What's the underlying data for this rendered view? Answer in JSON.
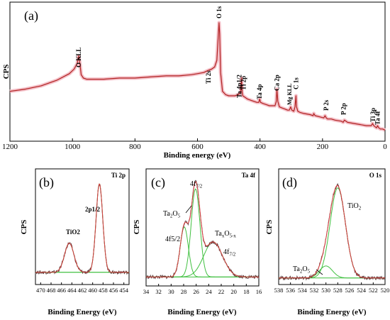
{
  "colors": {
    "raw": "#5a3a3a",
    "envelope": "#d84040",
    "component": "#40c040",
    "background": "#40c040",
    "survey_line": "#b02020",
    "survey_band": "#f4c0c8"
  },
  "chart_data": [
    {
      "id": "a",
      "type": "line",
      "panel_label": "(a)",
      "title": "",
      "xlabel": "Binding energy (eV)",
      "ylabel": "CPS",
      "x_reversed": true,
      "xlim": [
        1200,
        0
      ],
      "x_ticks": [
        "1200",
        "1000",
        "800",
        "600",
        "400",
        "200",
        "0"
      ],
      "y_ticks_shown": false,
      "series": [
        {
          "x": [
            1200,
            1150,
            1100,
            1050,
            1010,
            995,
            985,
            980,
            976,
            972,
            965,
            955,
            940,
            900,
            850,
            800,
            750,
            700,
            660,
            620,
            600,
            580,
            565,
            555,
            545,
            538,
            533,
            531,
            529,
            526,
            520,
            510,
            500,
            490,
            480,
            470,
            462,
            459,
            457,
            455,
            450,
            440,
            430,
            420,
            410,
            404,
            401,
            398,
            390,
            380,
            370,
            360,
            352,
            348,
            346,
            343,
            338,
            330,
            320,
            312,
            306,
            302,
            298,
            292,
            288,
            285,
            283,
            279,
            272,
            260,
            240,
            230,
            228,
            224,
            210,
            196,
            192,
            188,
            184,
            172,
            160,
            140,
            134,
            130,
            120,
            100,
            80,
            60,
            44,
            40,
            36,
            32,
            27,
            24,
            20,
            15,
            8,
            0
          ],
          "y": [
            38,
            40,
            43,
            48,
            54,
            58,
            63,
            70,
            63,
            53,
            50,
            49,
            49,
            49,
            50,
            50,
            51,
            52,
            52,
            53,
            54,
            55,
            57,
            58,
            60,
            66,
            90,
            100,
            90,
            55,
            38,
            35,
            34,
            34,
            34,
            35,
            37,
            50,
            37,
            34,
            33,
            31,
            30,
            29,
            28,
            28,
            31,
            28,
            27,
            26,
            25,
            25,
            25,
            29,
            40,
            29,
            24,
            23,
            22,
            21,
            21,
            24,
            21,
            20,
            24,
            34,
            24,
            20,
            19,
            18,
            17,
            16,
            18,
            16,
            15,
            14,
            16,
            14,
            13,
            13,
            12,
            11,
            10,
            12,
            10,
            9,
            8,
            7,
            7,
            9,
            7,
            6,
            5,
            7,
            5,
            4,
            4,
            3
          ]
        }
      ],
      "annotations": [
        {
          "text": "O KLL",
          "x": 980
        },
        {
          "text": "Ti 2s",
          "x": 565
        },
        {
          "text": "O 1s",
          "x": 531
        },
        {
          "text": "Ta 4p1/2",
          "x": 466
        },
        {
          "text": "Ti 2p",
          "x": 453
        },
        {
          "text": "Ta 4p",
          "x": 401
        },
        {
          "text": "Ca 2p",
          "x": 346
        },
        {
          "text": "Mg KLL",
          "x": 306
        },
        {
          "text": "C 1s",
          "x": 285
        },
        {
          "text": "P 2s",
          "x": 188
        },
        {
          "text": "P 2p",
          "x": 133
        },
        {
          "text": "Ti 3p",
          "x": 38
        },
        {
          "text": "Ta 4f",
          "x": 24
        }
      ]
    },
    {
      "id": "b",
      "type": "line",
      "panel_label": "(b)",
      "title": "Ti 2p",
      "xlabel": "Binding Energy (eV)",
      "ylabel": "CPS",
      "x_reversed": true,
      "xlim": [
        471,
        453
      ],
      "x_ticks": [
        "470",
        "468",
        "466",
        "464",
        "462",
        "460",
        "458",
        "456",
        "454"
      ],
      "background_level": 0.06,
      "components": [
        {
          "center": 464.5,
          "amp": 0.3,
          "width": 0.9
        },
        {
          "center": 458.7,
          "amp": 0.91,
          "width": 0.65
        }
      ],
      "annotations": [
        {
          "text": "2p1/2"
        },
        {
          "text": "TiO2"
        }
      ]
    },
    {
      "id": "c",
      "type": "line",
      "panel_label": "(c)",
      "title": "Ta 4f",
      "xlabel": "Binding Energy (eV)",
      "ylabel": "CPS",
      "x_reversed": true,
      "xlim": [
        34,
        16
      ],
      "x_ticks": [
        "34",
        "32",
        "30",
        "28",
        "26",
        "24",
        "22",
        "20",
        "18",
        "16"
      ],
      "background_level": 0.04,
      "components": [
        {
          "center": 27.9,
          "amp": 0.5,
          "width": 0.65
        },
        {
          "center": 26.1,
          "amp": 0.88,
          "width": 0.7
        },
        {
          "center": 23.3,
          "amp": 0.35,
          "width": 1.5
        }
      ],
      "annotations": [
        {
          "text": "Ta",
          "sub": "2",
          "text2": "O",
          "sub2": "5"
        },
        {
          "text": "4f",
          "sub": "7/2"
        },
        {
          "text": "4f5/2"
        },
        {
          "text": "Ta",
          "sub": "x",
          "text2": "O",
          "sub2": "5-x"
        },
        {
          "text": "4f",
          "sub": "7/2"
        }
      ]
    },
    {
      "id": "d",
      "type": "line",
      "panel_label": "(d)",
      "title": "O 1s",
      "xlabel": "Binding Energy (eV)",
      "ylabel": "CPS",
      "x_reversed": true,
      "xlim": [
        538,
        520
      ],
      "x_ticks": [
        "538",
        "536",
        "534",
        "532",
        "530",
        "528",
        "526",
        "524",
        "522",
        "520"
      ],
      "background_level": 0.03,
      "components": [
        {
          "center": 530.0,
          "amp": 0.12,
          "width": 1.1
        },
        {
          "center": 528.0,
          "amp": 0.9,
          "width": 1.3
        }
      ],
      "annotations": [
        {
          "text": "TiO",
          "sub": "2"
        },
        {
          "text": "Ta",
          "sub": "2",
          "text2": "O",
          "sub2": "5"
        }
      ]
    }
  ]
}
